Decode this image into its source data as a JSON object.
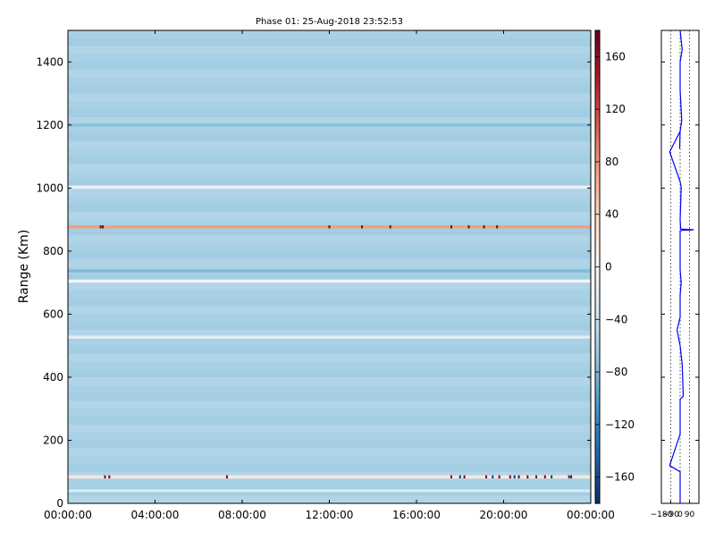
{
  "chart_data": [
    {
      "type": "heatmap",
      "title": "Phase 01: 25-Aug-2018 23:52:53",
      "ylabel": "Range (Km)",
      "xlabel": "",
      "x_ticks": [
        "00:00:00",
        "04:00:00",
        "08:00:00",
        "12:00:00",
        "16:00:00",
        "20:00:00",
        "00:00:00"
      ],
      "x_range_hours": [
        0,
        24
      ],
      "y_ticks": [
        0,
        200,
        400,
        600,
        800,
        1000,
        1200,
        1400
      ],
      "y_range": [
        0,
        1500
      ],
      "colorbar": {
        "range": [
          -180,
          180
        ],
        "ticks": [
          160,
          120,
          80,
          40,
          0,
          -40,
          -80,
          -120,
          -160
        ],
        "tick_labels": [
          "160",
          "120",
          "80",
          "40",
          "0",
          "−40",
          "−80",
          "−120",
          "−160"
        ],
        "colormap": [
          "#053061",
          "#2166ac",
          "#4393c3",
          "#92c5de",
          "#d1e5f0",
          "#f7f7f7",
          "#fddbc7",
          "#f4a582",
          "#d6604d",
          "#b2182b",
          "#67001f"
        ]
      },
      "background_value": -60,
      "bands": [
        {
          "range_km": 1200,
          "value": -75,
          "x_hours": [
            0,
            24
          ]
        },
        {
          "range_km": 1003,
          "value": -10,
          "x_hours": [
            0,
            24
          ]
        },
        {
          "range_km": 877,
          "value": 75,
          "x_hours": [
            0,
            24
          ]
        },
        {
          "range_km": 737,
          "value": -80,
          "x_hours": [
            0,
            24
          ]
        },
        {
          "range_km": 705,
          "value": -5,
          "x_hours": [
            0,
            24
          ]
        },
        {
          "range_km": 527,
          "value": -20,
          "x_hours": [
            0,
            24
          ]
        },
        {
          "range_km": 84,
          "value": 20,
          "x_hours": [
            0,
            24
          ]
        },
        {
          "range_km": 40,
          "value": -30,
          "x_hours": [
            0,
            24
          ]
        }
      ],
      "spikes": [
        {
          "range_km": 877,
          "x_hours": [
            1.5,
            1.6,
            12.0,
            13.5,
            14.8,
            17.6,
            18.4,
            19.1,
            19.7
          ],
          "value": 170
        },
        {
          "range_km": 84,
          "x_hours": [
            1.7,
            1.9,
            7.3,
            17.6,
            18.2,
            19.2,
            19.8,
            20.3,
            20.7,
            21.1,
            21.5,
            21.9,
            23.1
          ],
          "value": 170
        },
        {
          "range_km": 84,
          "x_hours": [
            18.0,
            19.5,
            20.5,
            22.2,
            23.0
          ],
          "value": -170
        }
      ]
    },
    {
      "type": "line",
      "x_ticks": [
        -180,
        -90,
        0,
        90
      ],
      "x_tick_labels": [
        "−180",
        "−90",
        "0",
        "90"
      ],
      "x_range": [
        -180,
        180
      ],
      "y_range": [
        0,
        1500
      ],
      "y_tick_values": [
        0,
        200,
        400,
        600,
        800,
        1000,
        1200,
        1400
      ],
      "series": [
        {
          "color": "#0000ff",
          "points": [
            {
              "y": 1500,
              "x": 0
            },
            {
              "y": 1440,
              "x": 20
            },
            {
              "y": 1400,
              "x": 0
            },
            {
              "y": 1310,
              "x": 0
            },
            {
              "y": 1215,
              "x": 15
            },
            {
              "y": 1180,
              "x": 0
            },
            {
              "y": 1125,
              "x": -5
            },
            {
              "y": 1180,
              "x": 0
            },
            {
              "y": 1115,
              "x": -100
            },
            {
              "y": 1020,
              "x": 0
            },
            {
              "y": 1003,
              "x": 10
            },
            {
              "y": 900,
              "x": 0
            },
            {
              "y": 870,
              "x": 5
            },
            {
              "y": 868,
              "x": 130
            },
            {
              "y": 865,
              "x": 0
            },
            {
              "y": 740,
              "x": 0
            },
            {
              "y": 700,
              "x": 10
            },
            {
              "y": 660,
              "x": 0
            },
            {
              "y": 590,
              "x": 0
            },
            {
              "y": 550,
              "x": -30
            },
            {
              "y": 500,
              "x": 0
            },
            {
              "y": 440,
              "x": 20
            },
            {
              "y": 340,
              "x": 30
            },
            {
              "y": 330,
              "x": 0
            },
            {
              "y": 220,
              "x": 0
            },
            {
              "y": 120,
              "x": -100
            },
            {
              "y": 100,
              "x": 0
            },
            {
              "y": 0,
              "x": 0
            }
          ]
        }
      ]
    }
  ]
}
